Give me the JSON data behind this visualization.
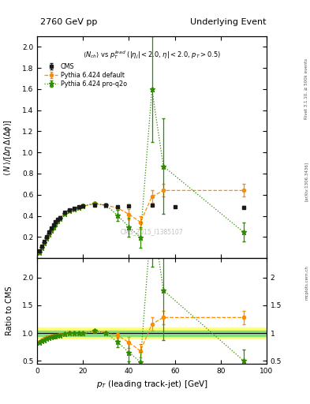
{
  "title_left": "2760 GeV pp",
  "title_right": "Underlying Event",
  "watermark": "CMS_2015_I1385107",
  "rivet_label": "Rivet 3.1.10, ≥ 500k events",
  "arxiv_label": "[arXiv:1306.3436]",
  "mcplots_label": "mcplots.cern.ch",
  "cms_x": [
    1,
    2,
    3,
    4,
    5,
    6,
    7,
    8,
    9,
    10,
    12,
    14,
    16,
    18,
    20,
    25,
    30,
    35,
    40,
    50,
    60,
    90
  ],
  "cms_y": [
    0.065,
    0.11,
    0.155,
    0.2,
    0.245,
    0.285,
    0.315,
    0.345,
    0.365,
    0.385,
    0.43,
    0.455,
    0.47,
    0.485,
    0.495,
    0.5,
    0.5,
    0.485,
    0.495,
    0.5,
    0.485,
    0.48
  ],
  "cms_yerr": [
    0.005,
    0.007,
    0.008,
    0.01,
    0.01,
    0.01,
    0.01,
    0.01,
    0.01,
    0.01,
    0.01,
    0.01,
    0.01,
    0.01,
    0.01,
    0.01,
    0.01,
    0.01,
    0.01,
    0.01,
    0.01,
    0.01
  ],
  "py_def_x": [
    1,
    2,
    3,
    4,
    5,
    6,
    7,
    8,
    9,
    10,
    12,
    14,
    16,
    18,
    20,
    25,
    30,
    35,
    40,
    45,
    50,
    55,
    90
  ],
  "py_def_y": [
    0.055,
    0.095,
    0.14,
    0.185,
    0.225,
    0.265,
    0.295,
    0.325,
    0.355,
    0.38,
    0.425,
    0.45,
    0.465,
    0.48,
    0.49,
    0.515,
    0.5,
    0.475,
    0.415,
    0.34,
    0.58,
    0.64,
    0.64
  ],
  "py_def_yerr": [
    0.004,
    0.006,
    0.008,
    0.009,
    0.01,
    0.011,
    0.011,
    0.011,
    0.011,
    0.011,
    0.011,
    0.011,
    0.011,
    0.011,
    0.011,
    0.015,
    0.015,
    0.02,
    0.05,
    0.06,
    0.06,
    0.06,
    0.06
  ],
  "py_q2o_x": [
    1,
    2,
    3,
    4,
    5,
    6,
    7,
    8,
    9,
    10,
    12,
    14,
    16,
    18,
    20,
    25,
    30,
    35,
    40,
    45,
    50,
    55,
    90
  ],
  "py_q2o_y": [
    0.055,
    0.095,
    0.14,
    0.185,
    0.225,
    0.263,
    0.293,
    0.322,
    0.352,
    0.376,
    0.422,
    0.45,
    0.466,
    0.48,
    0.495,
    0.515,
    0.5,
    0.405,
    0.295,
    0.195,
    1.6,
    0.87,
    0.245
  ],
  "py_q2o_yerr": [
    0.004,
    0.006,
    0.008,
    0.009,
    0.01,
    0.011,
    0.011,
    0.011,
    0.011,
    0.011,
    0.011,
    0.011,
    0.011,
    0.011,
    0.011,
    0.015,
    0.015,
    0.05,
    0.09,
    0.1,
    0.5,
    0.45,
    0.09
  ],
  "ratio_py_def_x": [
    1,
    2,
    3,
    4,
    5,
    6,
    7,
    8,
    9,
    10,
    12,
    14,
    16,
    18,
    20,
    25,
    30,
    35,
    40,
    45,
    50,
    55,
    90
  ],
  "ratio_py_def_y": [
    0.85,
    0.875,
    0.9,
    0.925,
    0.935,
    0.945,
    0.952,
    0.958,
    0.965,
    0.97,
    0.99,
    1.0,
    0.99,
    0.99,
    0.99,
    1.04,
    1.0,
    0.96,
    0.83,
    0.68,
    1.16,
    1.28,
    1.28
  ],
  "ratio_py_def_yerr": [
    0.01,
    0.01,
    0.01,
    0.01,
    0.01,
    0.01,
    0.01,
    0.01,
    0.01,
    0.01,
    0.01,
    0.01,
    0.01,
    0.01,
    0.01,
    0.02,
    0.02,
    0.04,
    0.1,
    0.12,
    0.12,
    0.12,
    0.12
  ],
  "ratio_py_q2o_x": [
    1,
    2,
    3,
    4,
    5,
    6,
    7,
    8,
    9,
    10,
    12,
    14,
    16,
    18,
    20,
    25,
    30,
    35,
    40,
    45,
    50,
    55,
    90
  ],
  "ratio_py_q2o_y": [
    0.83,
    0.855,
    0.88,
    0.905,
    0.918,
    0.93,
    0.938,
    0.947,
    0.957,
    0.965,
    0.983,
    0.998,
    0.998,
    0.998,
    1.0,
    1.04,
    1.0,
    0.84,
    0.65,
    0.48,
    3.2,
    1.77,
    0.5
  ],
  "ratio_py_q2o_yerr": [
    0.01,
    0.01,
    0.01,
    0.01,
    0.01,
    0.01,
    0.01,
    0.01,
    0.01,
    0.01,
    0.01,
    0.01,
    0.01,
    0.01,
    0.01,
    0.02,
    0.02,
    0.1,
    0.16,
    0.2,
    1.0,
    0.9,
    0.2
  ],
  "cms_color": "#1a1a1a",
  "py_def_color": "#ff8c00",
  "py_q2o_color": "#2e8b00",
  "band_green": "#80e080",
  "band_yellow": "#ffff70",
  "ylim_main": [
    0.0,
    2.1
  ],
  "ylim_ratio": [
    0.45,
    2.35
  ],
  "yticks_main": [
    0.2,
    0.4,
    0.6,
    0.8,
    1.0,
    1.2,
    1.4,
    1.6,
    1.8,
    2.0
  ],
  "yticks_ratio": [
    0.5,
    1.0,
    1.5,
    2.0
  ],
  "xlim": [
    0,
    100
  ]
}
